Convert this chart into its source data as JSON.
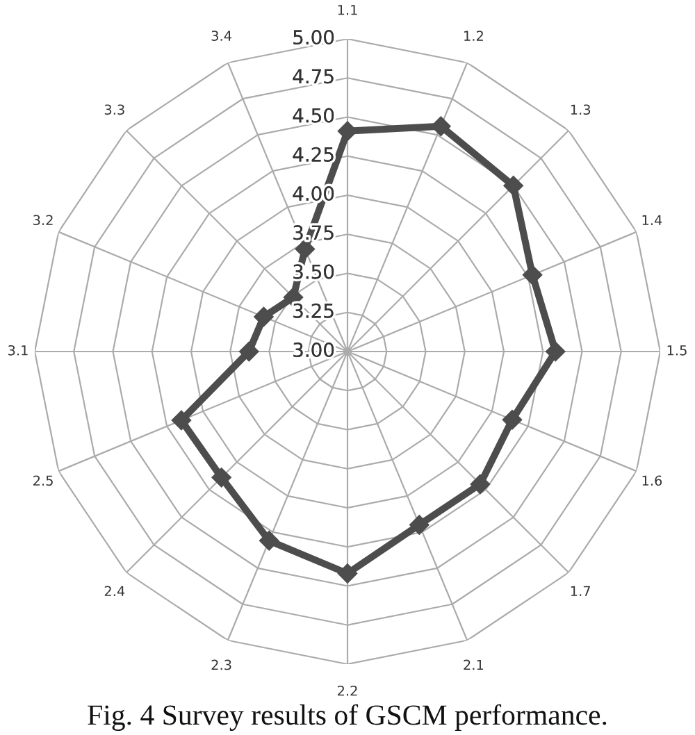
{
  "chart_data": {
    "type": "radar",
    "title": "Fig. 4 Survey results of GSCM performance.",
    "categories": [
      "1.1",
      "1.2",
      "1.3",
      "1.4",
      "1.5",
      "1.6",
      "1.7",
      "2.1",
      "2.2",
      "2.3",
      "2.4",
      "2.5",
      "3.1",
      "3.2",
      "3.3",
      "3.4"
    ],
    "series": [
      {
        "color": "#4d4d4d",
        "values": [
          4.41,
          4.56,
          4.5,
          4.28,
          4.33,
          4.14,
          4.2,
          4.2,
          4.42,
          4.31,
          4.14,
          4.15,
          3.63,
          3.58,
          3.49,
          3.71
        ]
      }
    ],
    "ylim": [
      3,
      5
    ],
    "yticks": [
      {
        "value": 3,
        "label": "3.00"
      },
      {
        "value": 3.25,
        "label": "3.25"
      },
      {
        "value": 3.5,
        "label": "3.50"
      },
      {
        "value": 3.75,
        "label": "3.75"
      },
      {
        "value": 4,
        "label": "4.00"
      },
      {
        "value": 4.25,
        "label": "4.25"
      },
      {
        "value": 4.5,
        "label": "4.50"
      },
      {
        "value": 4.75,
        "label": "4.75"
      },
      {
        "value": 5,
        "label": "5.00"
      }
    ],
    "marker": "diamond",
    "grid": true
  }
}
